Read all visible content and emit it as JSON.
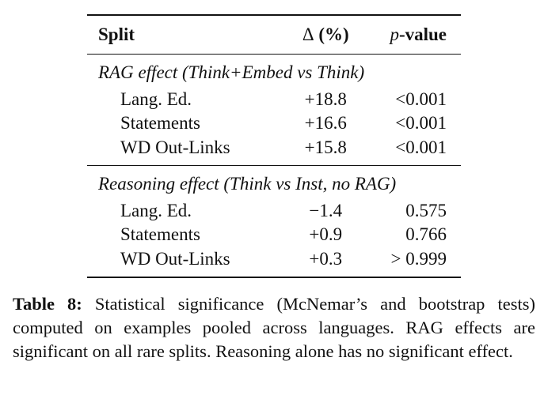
{
  "table": {
    "headers": {
      "split": "Split",
      "delta_symbol": "Δ",
      "delta_unit": "(%)",
      "p_var": "p",
      "p_suffix": "-value"
    },
    "groups": [
      {
        "title": "RAG effect (Think+Embed vs Think)",
        "rows": [
          {
            "split": "Lang. Ed.",
            "delta": "+18.8",
            "p": "<0.001"
          },
          {
            "split": "Statements",
            "delta": "+16.6",
            "p": "<0.001"
          },
          {
            "split": "WD Out-Links",
            "delta": "+15.8",
            "p": "<0.001"
          }
        ]
      },
      {
        "title": "Reasoning effect (Think vs Inst, no RAG)",
        "rows": [
          {
            "split": "Lang. Ed.",
            "delta": "−1.4",
            "p": "0.575"
          },
          {
            "split": "Statements",
            "delta": "+0.9",
            "p": "0.766"
          },
          {
            "split": "WD Out-Links",
            "delta": "+0.3",
            "p": "> 0.999"
          }
        ]
      }
    ]
  },
  "caption": {
    "label": "Table 8:",
    "text": "Statistical significance (McNemar’s and bootstrap tests) computed on examples pooled across languages. RAG effects are significant on all rare splits. Reasoning alone has no significant effect."
  }
}
